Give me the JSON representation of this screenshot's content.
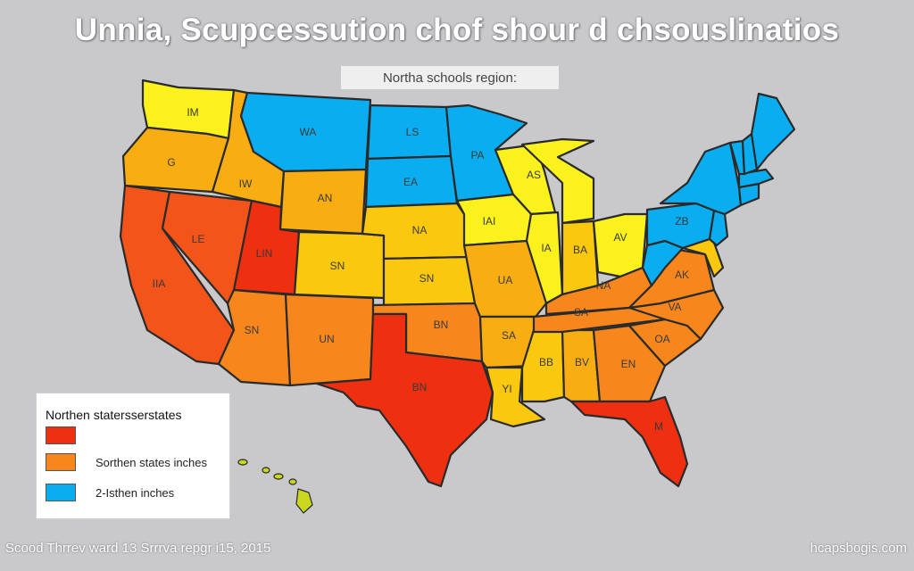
{
  "title": "Unnia, Scupcessution chof shour d chsouslinatios",
  "subtitle": "Northa schools region:",
  "colors": {
    "red": "#ee2f10",
    "red_orange": "#f2541a",
    "orange": "#f7871c",
    "amber": "#f8ae12",
    "gold": "#f9c80f",
    "yellow": "#fbf11c",
    "blue": "#0aaef0",
    "hawaii": "#c9d81f"
  },
  "states": [
    {
      "id": "wa",
      "label": "IM",
      "color": "yellow"
    },
    {
      "id": "or",
      "label": "G",
      "color": "amber"
    },
    {
      "id": "ca",
      "label": "IIA",
      "color": "red_orange"
    },
    {
      "id": "nv",
      "label": "LE",
      "color": "red_orange"
    },
    {
      "id": "id",
      "label": "IW",
      "color": "amber"
    },
    {
      "id": "mt",
      "label": "WA",
      "color": "blue"
    },
    {
      "id": "wy",
      "label": "AN",
      "color": "amber"
    },
    {
      "id": "ut",
      "label": "LIN",
      "color": "red"
    },
    {
      "id": "az",
      "label": "SN",
      "color": "orange"
    },
    {
      "id": "co",
      "label": "SN",
      "color": "gold"
    },
    {
      "id": "nm",
      "label": "UN",
      "color": "orange"
    },
    {
      "id": "nd",
      "label": "LS",
      "color": "blue"
    },
    {
      "id": "sd",
      "label": "EA",
      "color": "blue"
    },
    {
      "id": "ne",
      "label": "NA",
      "color": "gold"
    },
    {
      "id": "ks",
      "label": "SN",
      "color": "gold"
    },
    {
      "id": "ok",
      "label": "BN",
      "color": "orange"
    },
    {
      "id": "tx",
      "label": "BN",
      "color": "red"
    },
    {
      "id": "mn",
      "label": "PA",
      "color": "blue"
    },
    {
      "id": "ia",
      "label": "IAI",
      "color": "yellow"
    },
    {
      "id": "mo",
      "label": "UA",
      "color": "amber"
    },
    {
      "id": "ar",
      "label": "SA",
      "color": "amber"
    },
    {
      "id": "la",
      "label": "YI",
      "color": "gold"
    },
    {
      "id": "wi",
      "label": "AS",
      "color": "yellow"
    },
    {
      "id": "mi",
      "label": "",
      "color": "yellow"
    },
    {
      "id": "il",
      "label": "IA",
      "color": "yellow"
    },
    {
      "id": "in",
      "label": "BA",
      "color": "gold"
    },
    {
      "id": "oh",
      "label": "AV",
      "color": "yellow"
    },
    {
      "id": "ky",
      "label": "NA",
      "color": "orange"
    },
    {
      "id": "tn",
      "label": "SA",
      "color": "orange"
    },
    {
      "id": "ms",
      "label": "BB",
      "color": "gold"
    },
    {
      "id": "al",
      "label": "BV",
      "color": "amber"
    },
    {
      "id": "ga",
      "label": "EN",
      "color": "orange"
    },
    {
      "id": "fl",
      "label": "M",
      "color": "red"
    },
    {
      "id": "sc",
      "label": "OA",
      "color": "orange"
    },
    {
      "id": "nc",
      "label": "VA",
      "color": "orange"
    },
    {
      "id": "va",
      "label": "AK",
      "color": "orange"
    },
    {
      "id": "wv",
      "label": "",
      "color": "blue"
    },
    {
      "id": "pa",
      "label": "ZB",
      "color": "blue"
    },
    {
      "id": "ny",
      "label": "",
      "color": "blue"
    },
    {
      "id": "md",
      "label": "",
      "color": "gold"
    },
    {
      "id": "nj",
      "label": "",
      "color": "blue"
    },
    {
      "id": "vt",
      "label": "",
      "color": "blue"
    },
    {
      "id": "nh",
      "label": "",
      "color": "blue"
    },
    {
      "id": "me",
      "label": "",
      "color": "blue"
    },
    {
      "id": "ma",
      "label": "",
      "color": "blue"
    },
    {
      "id": "ct",
      "label": "",
      "color": "blue"
    },
    {
      "id": "hi",
      "label": "",
      "color": "hawaii"
    }
  ],
  "legend": {
    "title": "Northen statersserstates",
    "items": [
      {
        "label": "",
        "color": "#ee2f10"
      },
      {
        "label": "Sorthen states inches",
        "color": "#f7871c"
      },
      {
        "label": "2-Isthen inches",
        "color": "#0aaef0"
      }
    ]
  },
  "footer": {
    "left": "Scood Thrrev ward 13 Srrrva repgr i15, 2015",
    "right": "hcapsbogis.com"
  }
}
